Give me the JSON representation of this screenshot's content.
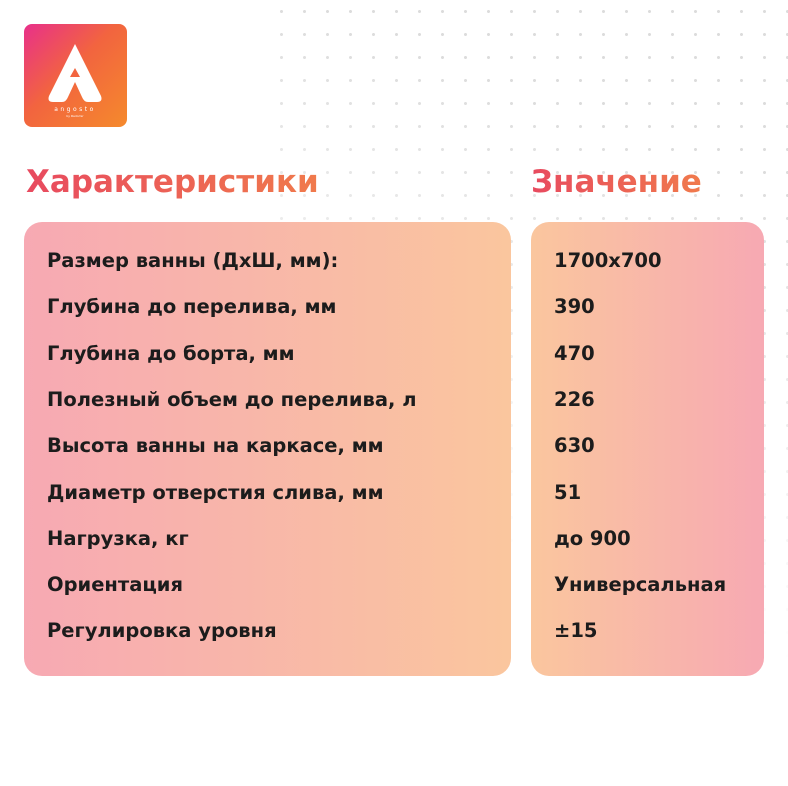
{
  "logo": {
    "brand": "angosto",
    "sub": "by Radomir",
    "colors": [
      "#e8308a",
      "#f58a2c"
    ]
  },
  "headers": {
    "characteristics": "Характеристики",
    "value": "Значение"
  },
  "rows": [
    {
      "label": "Размер ванны (ДхШ, мм):",
      "value": "1700x700"
    },
    {
      "label": "Глубина до перелива, мм",
      "value": "390"
    },
    {
      "label": "Глубина до борта, мм",
      "value": "470"
    },
    {
      "label": "Полезный объем до перелива, л",
      "value": "226"
    },
    {
      "label": "Высота ванны на каркасе, мм",
      "value": "630"
    },
    {
      "label": "Диаметр отверстия слива, мм",
      "value": "51"
    },
    {
      "label": "Нагрузка, кг",
      "value": "до 900"
    },
    {
      "label": "Ориентация",
      "value": "Универсальная"
    },
    {
      "label": "Регулировка уровня",
      "value": "±15"
    }
  ]
}
